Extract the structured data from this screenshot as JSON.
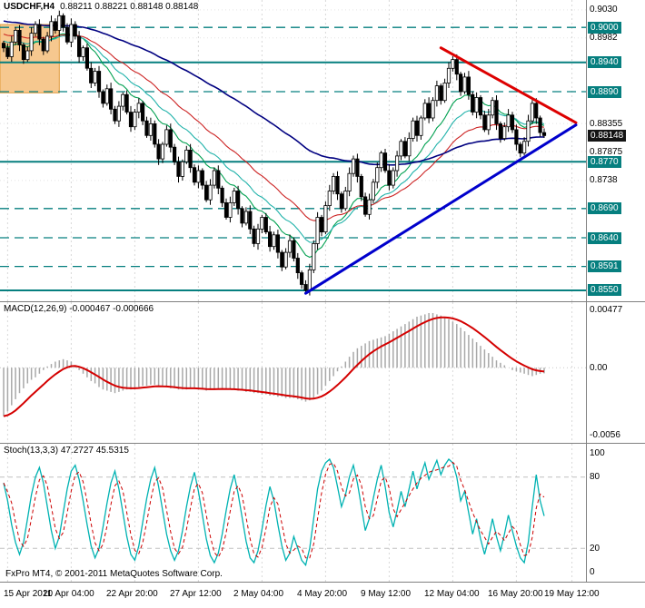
{
  "main_chart": {
    "symbol_period": "USDCHF,H4",
    "ohlc": "0.88211 0.88221 0.88148 0.88148"
  },
  "macd_panel": {
    "label": "MACD(12,26,9) -0.000467 -0.000666"
  },
  "stoch_panel": {
    "label": "Stoch(13,3,3) 47.2727 45.5315"
  },
  "footer": "FxPro MT4, © 2001-2011 MetaQuotes Software Corp.",
  "colors": {
    "level": "#067f7f",
    "grid": "#d9d9d9",
    "bull": "#ffffff",
    "bear": "#000000",
    "macd_hist": "#a8a8a8",
    "macd_signal": "#d40000",
    "stoch_main": "#00b2b2",
    "stoch_signal": "#cc0000",
    "trend_down": "#dd0000",
    "trend_up": "#0000cc"
  },
  "chart_data": [
    {
      "type": "candlestick",
      "title": "USDCHF,H4",
      "ohlc_readout": [
        0.88211,
        0.88221,
        0.88148,
        0.88148
      ],
      "y_range": [
        0.85313,
        0.90469
      ],
      "closes": [
        0.8965,
        0.895,
        0.8975,
        0.8995,
        0.897,
        0.8945,
        0.896,
        0.899,
        0.9005,
        0.898,
        0.896,
        0.8985,
        0.901,
        0.8995,
        0.902,
        0.9,
        0.8975,
        0.9005,
        0.8985,
        0.895,
        0.8965,
        0.893,
        0.8905,
        0.8925,
        0.889,
        0.887,
        0.8895,
        0.886,
        0.884,
        0.8865,
        0.8885,
        0.8855,
        0.883,
        0.8855,
        0.887,
        0.884,
        0.8815,
        0.8835,
        0.88,
        0.8775,
        0.88,
        0.8825,
        0.8795,
        0.877,
        0.8745,
        0.877,
        0.879,
        0.876,
        0.8735,
        0.8755,
        0.873,
        0.8705,
        0.873,
        0.8755,
        0.8725,
        0.87,
        0.8675,
        0.87,
        0.872,
        0.869,
        0.8665,
        0.8685,
        0.8655,
        0.863,
        0.8655,
        0.8675,
        0.865,
        0.8625,
        0.8645,
        0.8615,
        0.859,
        0.8615,
        0.8635,
        0.8605,
        0.858,
        0.856,
        0.855,
        0.8585,
        0.863,
        0.8675,
        0.865,
        0.8695,
        0.872,
        0.8745,
        0.8715,
        0.869,
        0.872,
        0.875,
        0.8775,
        0.8745,
        0.871,
        0.868,
        0.8705,
        0.8735,
        0.876,
        0.8785,
        0.8755,
        0.873,
        0.8755,
        0.878,
        0.8805,
        0.878,
        0.881,
        0.884,
        0.8815,
        0.8845,
        0.887,
        0.8845,
        0.8875,
        0.89,
        0.8875,
        0.8905,
        0.893,
        0.8945,
        0.892,
        0.889,
        0.8915,
        0.8885,
        0.8855,
        0.888,
        0.885,
        0.8825,
        0.885,
        0.8875,
        0.8835,
        0.881,
        0.883,
        0.885,
        0.8825,
        0.88,
        0.8785,
        0.8805,
        0.884,
        0.887,
        0.8845,
        0.882,
        0.88148
      ],
      "price_axis": [
        {
          "value": 0.903,
          "label": "0.9030",
          "style": "plain"
        },
        {
          "value": 0.9,
          "label": "0.9000",
          "style": "level"
        },
        {
          "value": 0.8982,
          "label": "0.8982",
          "style": "plain"
        },
        {
          "value": 0.894,
          "label": "0.8940",
          "style": "level"
        },
        {
          "value": 0.889,
          "label": "0.8890",
          "style": "level"
        },
        {
          "value": 0.88355,
          "label": "0.88355",
          "style": "plain"
        },
        {
          "value": 0.88148,
          "label": "0.88148",
          "style": "current"
        },
        {
          "value": 0.87875,
          "label": "0.87875",
          "style": "plain"
        },
        {
          "value": 0.877,
          "label": "0.8770",
          "style": "level"
        },
        {
          "value": 0.8738,
          "label": "0.8738",
          "style": "plain"
        },
        {
          "value": 0.869,
          "label": "0.8690",
          "style": "level"
        },
        {
          "value": 0.864,
          "label": "0.8640",
          "style": "level"
        },
        {
          "value": 0.8591,
          "label": "0.8591",
          "style": "level"
        },
        {
          "value": 0.855,
          "label": "0.8550",
          "style": "level"
        }
      ],
      "levels": [
        {
          "price": 0.9,
          "style": "dashed"
        },
        {
          "price": 0.894,
          "style": "solid"
        },
        {
          "price": 0.889,
          "style": "dashed"
        },
        {
          "price": 0.877,
          "style": "solid"
        },
        {
          "price": 0.869,
          "style": "dashed"
        },
        {
          "price": 0.864,
          "style": "dashed"
        },
        {
          "price": 0.8591,
          "style": "dashed"
        },
        {
          "price": 0.855,
          "style": "solid"
        }
      ],
      "moving_averages": [
        {
          "period": 13,
          "color": "#00a050",
          "width": 1.1,
          "seed": 0.897
        },
        {
          "period": 21,
          "color": "#20b2aa",
          "width": 1.1,
          "seed": 0.8978
        },
        {
          "period": 34,
          "color": "#cc2222",
          "width": 1.1,
          "seed": 0.899
        },
        {
          "period": 89,
          "color": "#000080",
          "width": 1.6,
          "seed": 0.9012
        }
      ],
      "trendlines": [
        {
          "from_bar": 110,
          "from_price": 0.8965,
          "to_bar": 144,
          "to_price": 0.8837,
          "color": "#dd0000",
          "width": 3
        },
        {
          "from_bar": 76,
          "from_price": 0.8545,
          "to_bar": 144,
          "to_price": 0.8833,
          "color": "#0000cc",
          "width": 3
        }
      ],
      "zone": {
        "from_bar": 0,
        "to_bar": 14,
        "top": 0.9005,
        "bottom": 0.8888,
        "fill": "#f6c88f",
        "border": "#e09b3d"
      },
      "x_ticks": [
        {
          "label": "15 Apr 2011",
          "bar": 1
        },
        {
          "label": "20 Apr 04:00",
          "bar": 17
        },
        {
          "label": "22 Apr 20:00",
          "bar": 33
        },
        {
          "label": "27 Apr 12:00",
          "bar": 49
        },
        {
          "label": "2 May 04:00",
          "bar": 65
        },
        {
          "label": "4 May 20:00",
          "bar": 81
        },
        {
          "label": "9 May 12:00",
          "bar": 97
        },
        {
          "label": "12 May 04:00",
          "bar": 113
        },
        {
          "label": "16 May 20:00",
          "bar": 129
        },
        {
          "label": "19 May 12:00",
          "bar": 143
        }
      ]
    },
    {
      "type": "bar",
      "name": "MACD(12,26,9)",
      "current_values": [
        -0.000467,
        -0.000666
      ],
      "signal_period": 9,
      "y_range": [
        -0.0062,
        0.0054
      ],
      "axis_labels": [
        {
          "value": 0.00477,
          "label": "0.00477"
        },
        {
          "value": 0,
          "label": "0.00"
        },
        {
          "value": -0.0056,
          "label": "-0.0056"
        }
      ],
      "histogram": [
        -0.004,
        -0.0036,
        -0.0031,
        -0.0026,
        -0.0021,
        -0.0017,
        -0.0013,
        -0.001,
        -0.0008,
        -0.0005,
        -0.0002,
        0.0001,
        0.0003,
        0.0005,
        0.0006,
        0.0007,
        0.0006,
        0.0005,
        0.0002,
        -0.0002,
        -0.0005,
        -0.0008,
        -0.0011,
        -0.0013,
        -0.0016,
        -0.0018,
        -0.0019,
        -0.002,
        -0.0021,
        -0.002,
        -0.0019,
        -0.0018,
        -0.0018,
        -0.0017,
        -0.0016,
        -0.0015,
        -0.0015,
        -0.0014,
        -0.0014,
        -0.0015,
        -0.0016,
        -0.0016,
        -0.0017,
        -0.0017,
        -0.0018,
        -0.0018,
        -0.0018,
        -0.0017,
        -0.0017,
        -0.0018,
        -0.0018,
        -0.0019,
        -0.0018,
        -0.0018,
        -0.0017,
        -0.0017,
        -0.0018,
        -0.0018,
        -0.0018,
        -0.0019,
        -0.0019,
        -0.002,
        -0.002,
        -0.0021,
        -0.0021,
        -0.0022,
        -0.0022,
        -0.0023,
        -0.0023,
        -0.0024,
        -0.0024,
        -0.0025,
        -0.0025,
        -0.0025,
        -0.0026,
        -0.0027,
        -0.0028,
        -0.0027,
        -0.0025,
        -0.0022,
        -0.0019,
        -0.0015,
        -0.0011,
        -0.0007,
        -0.0003,
        0.0001,
        0.0005,
        0.0009,
        0.0013,
        0.0016,
        0.0018,
        0.002,
        0.0022,
        0.0023,
        0.0024,
        0.0025,
        0.0026,
        0.0028,
        0.003,
        0.0032,
        0.0034,
        0.0036,
        0.0038,
        0.004,
        0.0042,
        0.0043,
        0.0044,
        0.0045,
        0.0045,
        0.0044,
        0.0043,
        0.0042,
        0.004,
        0.0038,
        0.0036,
        0.0033,
        0.003,
        0.0027,
        0.0024,
        0.0021,
        0.0018,
        0.0015,
        0.0012,
        0.0009,
        0.0006,
        0.0004,
        0.0002,
        0.0,
        -0.0002,
        -0.0003,
        -0.0004,
        -0.0005,
        -0.0006,
        -0.0007,
        -0.0006,
        -0.0005,
        -0.000467
      ]
    },
    {
      "type": "line",
      "name": "Stoch(13,3,3)",
      "current_values": [
        47.2727,
        45.5315
      ],
      "d_period": 3,
      "y_range": [
        -8,
        108
      ],
      "grid_levels": [
        80,
        20
      ],
      "axis_labels": [
        {
          "value": 100,
          "label": "100"
        },
        {
          "value": 80,
          "label": "80"
        },
        {
          "value": 20,
          "label": "20"
        },
        {
          "value": 0,
          "label": "0"
        }
      ],
      "k_values": [
        75,
        60,
        40,
        25,
        15,
        25,
        45,
        65,
        80,
        88,
        75,
        55,
        35,
        20,
        30,
        50,
        70,
        85,
        90,
        78,
        60,
        40,
        22,
        12,
        20,
        38,
        58,
        75,
        85,
        70,
        50,
        30,
        15,
        10,
        22,
        42,
        62,
        78,
        88,
        72,
        52,
        32,
        18,
        10,
        18,
        35,
        55,
        72,
        84,
        68,
        48,
        28,
        14,
        8,
        16,
        32,
        52,
        70,
        82,
        66,
        46,
        26,
        12,
        8,
        18,
        36,
        56,
        72,
        60,
        40,
        22,
        10,
        16,
        30,
        20,
        10,
        6,
        20,
        45,
        70,
        85,
        92,
        95,
        88,
        72,
        55,
        65,
        80,
        90,
        75,
        55,
        35,
        45,
        62,
        78,
        90,
        72,
        50,
        38,
        52,
        68,
        55,
        70,
        85,
        70,
        82,
        92,
        78,
        86,
        94,
        82,
        90,
        95,
        92,
        80,
        60,
        68,
        50,
        32,
        45,
        28,
        15,
        28,
        45,
        30,
        18,
        32,
        48,
        35,
        22,
        12,
        8,
        25,
        55,
        82,
        60,
        47.27
      ]
    }
  ]
}
